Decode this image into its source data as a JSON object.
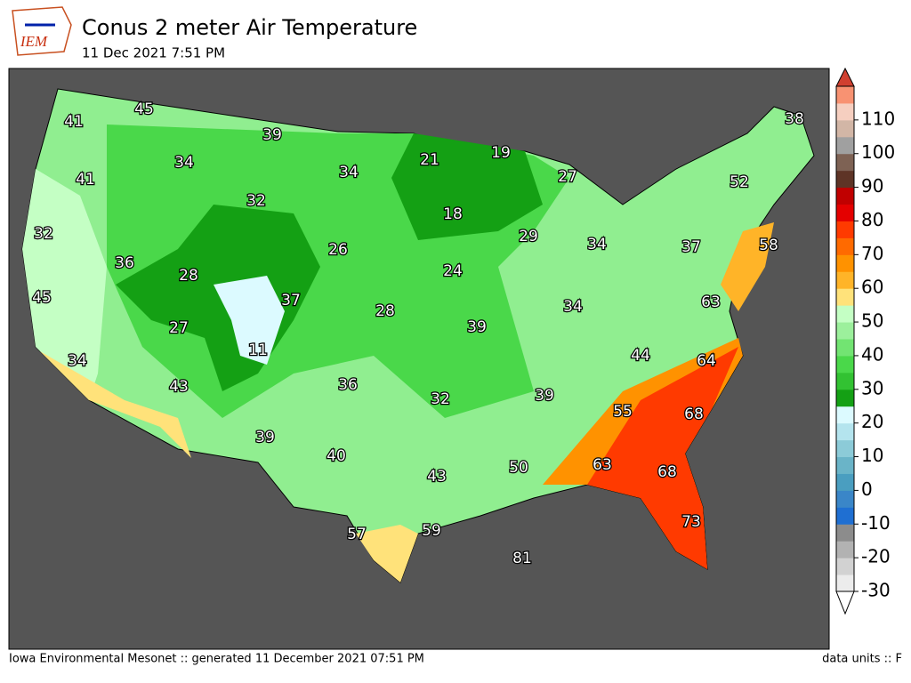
{
  "logo": "IEM",
  "title": "Conus 2 meter Air Temperature",
  "subtitle": "11 Dec 2021 7:51 PM",
  "footer_left": "Iowa Environmental Mesonet :: generated 11 December 2021 07:51 PM",
  "footer_right": "data units :: F",
  "stations": [
    41,
    45,
    39,
    34,
    41,
    34,
    21,
    19,
    27,
    38,
    52,
    32,
    18,
    32,
    26,
    29,
    34,
    58,
    37,
    36,
    28,
    24,
    45,
    37,
    28,
    34,
    63,
    27,
    39,
    11,
    44,
    64,
    34,
    43,
    36,
    32,
    39,
    55,
    68,
    39,
    40,
    50,
    63,
    68,
    43,
    73,
    57,
    59,
    81
  ],
  "colorbar": {
    "lim": [
      -30,
      120
    ],
    "ticks": [
      -30,
      -20,
      -10,
      0,
      10,
      20,
      30,
      40,
      50,
      60,
      70,
      80,
      90,
      100,
      110
    ],
    "colors": [
      "#ececec",
      "#d2d2d2",
      "#b2b2b2",
      "#8c8c8c",
      "#1f6fd2",
      "#3a86c8",
      "#4a9ec0",
      "#6ab4c8",
      "#8ccbd8",
      "#b4e4ee",
      "#dcfaff",
      "#14a014",
      "#32c232",
      "#4ad84a",
      "#72e472",
      "#9cf09c",
      "#c4ffc4",
      "#ffe27a",
      "#ffb428",
      "#ff9200",
      "#ff6a00",
      "#ff3a00",
      "#e40000",
      "#c00000",
      "#5e3426",
      "#7e6254",
      "#a0a0a0",
      "#d2b6a6",
      "#f6cfc0",
      "#f89272"
    ]
  }
}
